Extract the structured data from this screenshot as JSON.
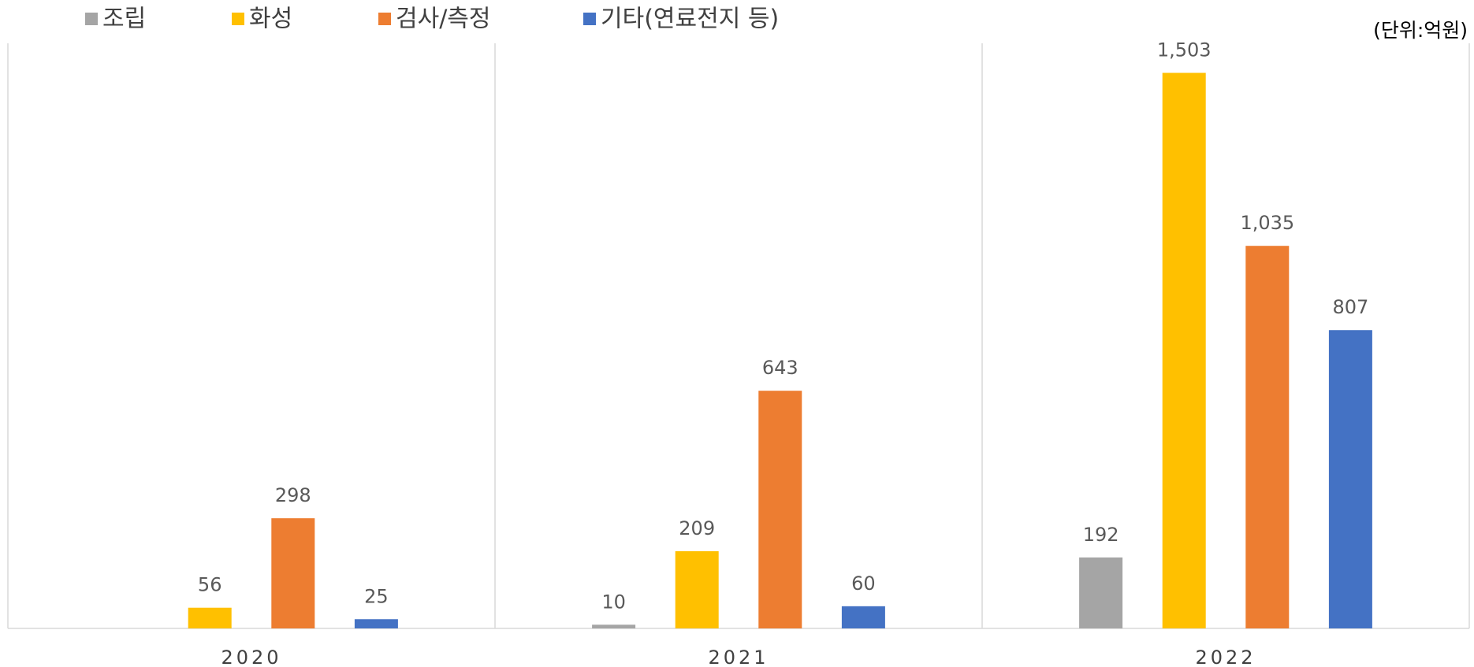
{
  "chart_data": {
    "type": "bar",
    "unit_note": "(단위:억원)",
    "categories": [
      "2020",
      "2021",
      "2022"
    ],
    "series": [
      {
        "name": "조립",
        "color": "#a5a5a5",
        "values": [
          null,
          10,
          192
        ],
        "value_labels": [
          null,
          "10",
          "192"
        ]
      },
      {
        "name": "화성",
        "color": "#ffc000",
        "values": [
          56,
          209,
          1503
        ],
        "value_labels": [
          "56",
          "209",
          "1,503"
        ]
      },
      {
        "name": "검사/측정",
        "color": "#ed7d31",
        "values": [
          298,
          643,
          1035
        ],
        "value_labels": [
          "298",
          "643",
          "1,035"
        ]
      },
      {
        "name": "기타(연료전지 등)",
        "color": "#4472c4",
        "values": [
          25,
          60,
          807
        ],
        "value_labels": [
          "25",
          "60",
          "807"
        ]
      }
    ],
    "ylim": [
      0,
      1600
    ],
    "legend": "top"
  }
}
